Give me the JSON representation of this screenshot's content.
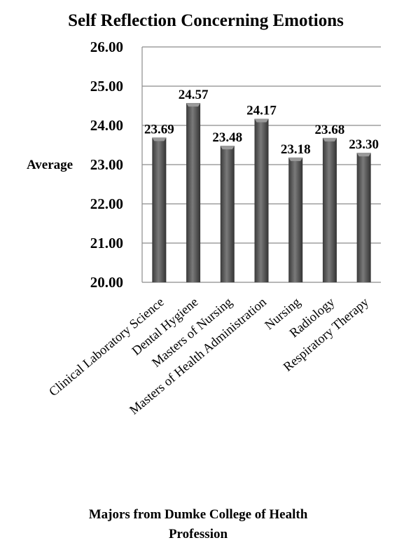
{
  "chart_data": {
    "type": "bar",
    "title": "Self Reflection Concerning Emotions",
    "ylabel": "Average",
    "xlabel_lines": [
      "Majors from Dumke College of Health",
      "Profession"
    ],
    "categories": [
      "Clinical Laboratory Science",
      "Dental Hygiene",
      "Masters of Nursing",
      "Masters of Health Administration",
      "Nursing",
      "Radiology",
      "Respiratory Therapy"
    ],
    "values": [
      23.69,
      24.57,
      23.48,
      24.17,
      23.18,
      23.68,
      23.3
    ],
    "value_labels": [
      "23.69",
      "24.57",
      "23.48",
      "24.17",
      "23.18",
      "23.68",
      "23.30"
    ],
    "ylim": [
      20,
      26
    ],
    "yticks": [
      "20.00",
      "21.00",
      "22.00",
      "23.00",
      "24.00",
      "25.00",
      "26.00"
    ],
    "grid": true,
    "legend": "none",
    "colors": {
      "bar": "#4d4d4d",
      "bar_light": "#7a7a7a",
      "grid": "#8c8c8c"
    }
  }
}
